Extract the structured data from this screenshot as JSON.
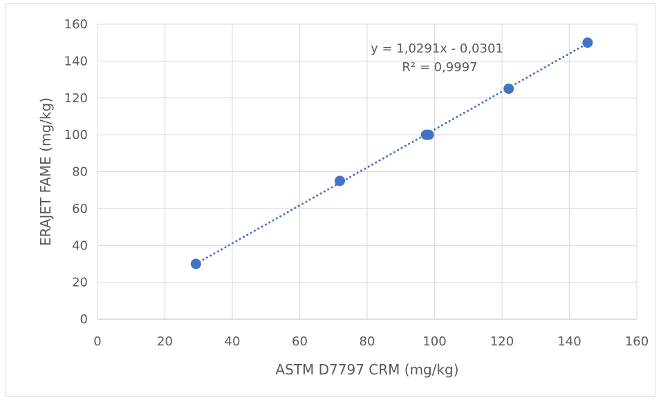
{
  "chart_data": {
    "type": "scatter",
    "xlabel": "ASTM D7797 CRM (mg/kg)",
    "ylabel": "ERAJET FAME (mg/kg)",
    "xlim": [
      0,
      160
    ],
    "ylim": [
      0,
      160
    ],
    "x_ticks": [
      "0",
      "20",
      "40",
      "60",
      "80",
      "100",
      "120",
      "140",
      "160"
    ],
    "y_ticks": [
      "0",
      "20",
      "40",
      "60",
      "80",
      "100",
      "120",
      "140",
      "160"
    ],
    "grid": true,
    "legend": "none",
    "series": [
      {
        "points": [
          {
            "x": 29.2,
            "y": 30
          },
          {
            "x": 71.9,
            "y": 75
          },
          {
            "x": 97.5,
            "y": 100
          },
          {
            "x": 98.3,
            "y": 100
          },
          {
            "x": 122.0,
            "y": 125
          },
          {
            "x": 145.4,
            "y": 150
          }
        ],
        "color": "#4472C4"
      }
    ],
    "trendline": {
      "type": "linear",
      "slope": 1.0291,
      "intercept": -0.0301,
      "equation": "y = 1,0291x - 0,0301",
      "r_squared": "R² = 0,9997",
      "color": "#4472C4",
      "style": "dotted"
    }
  }
}
